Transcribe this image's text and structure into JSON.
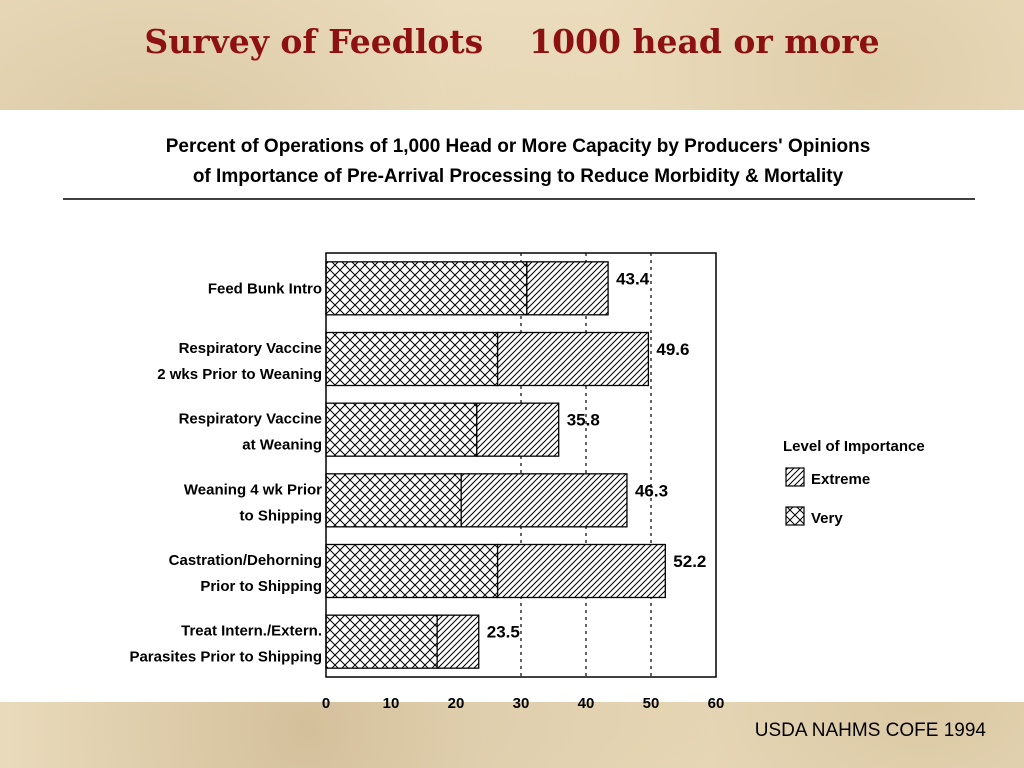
{
  "slide": {
    "title": "Survey of Feedlots    1000 head or more",
    "footer": "USDA NAHMS COFE  1994"
  },
  "colors": {
    "title": "#8e1111",
    "background": "#efe3c6",
    "bar_outline": "#000000"
  },
  "chart_data": {
    "type": "bar",
    "orientation": "horizontal",
    "stacked": true,
    "title_lines": [
      "Percent of Operations of 1,000 Head or More Capacity by Producers' Opinions",
      "of Importance of Pre-Arrival Processing to Reduce Morbidity & Mortality"
    ],
    "categories": [
      [
        "Feed Bunk Intro"
      ],
      [
        "Respiratory Vaccine",
        "2 wks Prior to Weaning"
      ],
      [
        "Respiratory Vaccine",
        "at Weaning"
      ],
      [
        "Weaning 4 wk Prior",
        "to Shipping"
      ],
      [
        "Castration/Dehorning",
        "Prior to Shipping"
      ],
      [
        "Treat Intern./Extern.",
        "Parasites Prior to Shipping"
      ]
    ],
    "series": [
      {
        "name": "Very",
        "pattern": "crosshatch",
        "values": [
          30.9,
          26.4,
          23.2,
          20.8,
          26.4,
          17.1
        ]
      },
      {
        "name": "Extreme",
        "pattern": "diagonal",
        "values": [
          12.5,
          23.2,
          12.6,
          25.5,
          25.8,
          6.4
        ]
      }
    ],
    "totals": [
      "43.4",
      "49.6",
      "35.8",
      "46.3",
      "52.2",
      "23.5"
    ],
    "x_ticks": [
      "0",
      "10",
      "20",
      "30",
      "40",
      "50",
      "60"
    ],
    "xlim": [
      0,
      60
    ],
    "gridlines_dotted_at": [
      30,
      40,
      50
    ],
    "legend": {
      "title": "Level of Importance",
      "placement": "right",
      "items": [
        {
          "label": "Extreme",
          "pattern": "diagonal"
        },
        {
          "label": "Very",
          "pattern": "crosshatch"
        }
      ]
    }
  }
}
